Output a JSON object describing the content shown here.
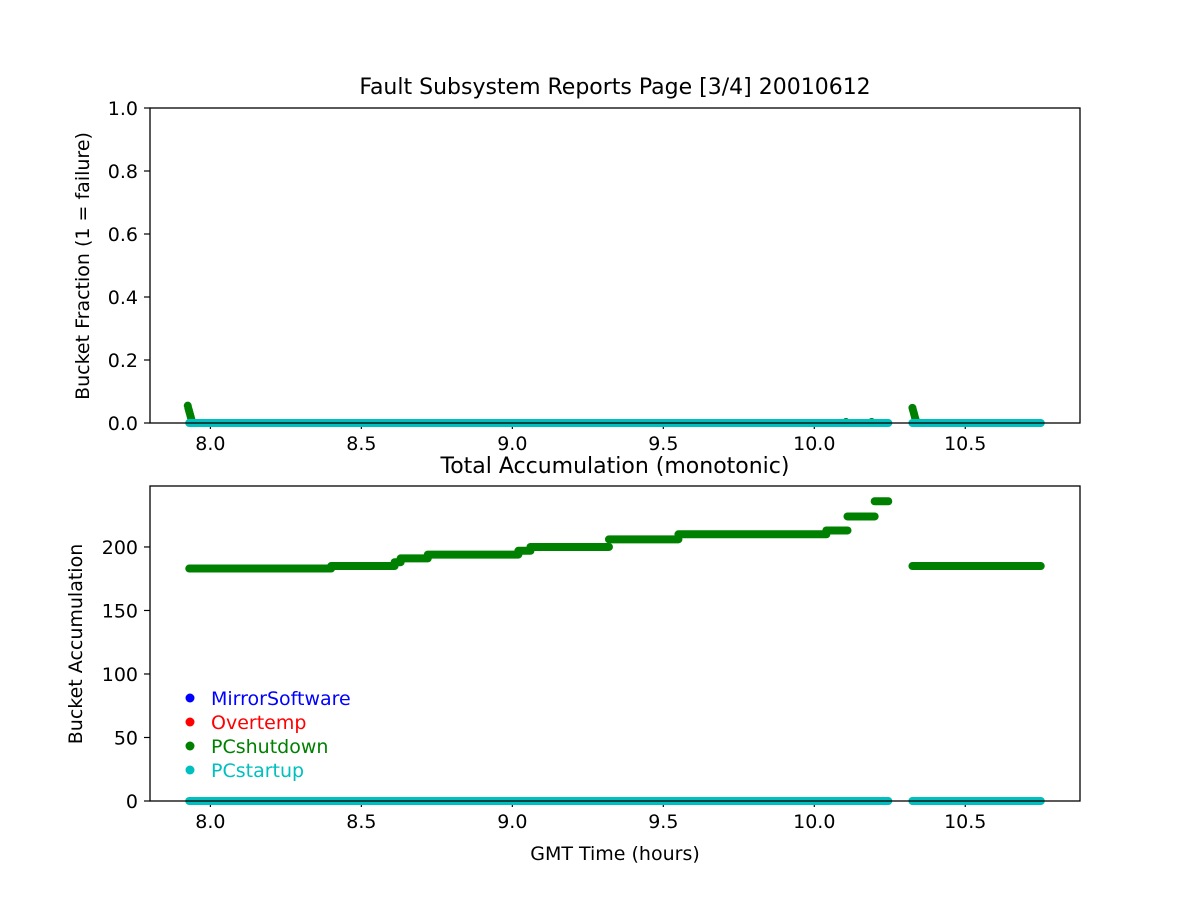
{
  "chart_data": [
    {
      "type": "scatter",
      "title": "Fault Subsystem Reports Page [3/4] 20010612",
      "xlabel": "",
      "ylabel": "Bucket Fraction (1 = failure)",
      "xlim": [
        7.8,
        10.88
      ],
      "ylim": [
        0,
        1.0
      ],
      "xticks": [
        8.0,
        8.5,
        9.0,
        9.5,
        10.0,
        10.5
      ],
      "xtick_labels": [
        "8.0",
        "8.5",
        "9.0",
        "9.5",
        "10.0",
        "10.5"
      ],
      "yticks": [
        0.0,
        0.2,
        0.4,
        0.6,
        0.8,
        1.0
      ],
      "ytick_labels": [
        "0.0",
        "0.2",
        "0.4",
        "0.6",
        "0.8",
        "1.0"
      ],
      "grid": false,
      "series": [
        {
          "name": "PCshutdown",
          "color": "#008000",
          "points": [
            [
              7.925,
              0.055
            ],
            [
              7.927,
              0.047
            ],
            [
              7.929,
              0.04
            ],
            [
              7.931,
              0.033
            ],
            [
              7.933,
              0.026
            ],
            [
              7.935,
              0.019
            ],
            [
              7.937,
              0.012
            ],
            [
              7.939,
              0.006
            ],
            [
              7.941,
              0.002
            ],
            [
              10.105,
              0.003
            ],
            [
              10.19,
              0.003
            ],
            [
              10.325,
              0.048
            ],
            [
              10.327,
              0.041
            ],
            [
              10.329,
              0.034
            ],
            [
              10.331,
              0.027
            ],
            [
              10.333,
              0.02
            ],
            [
              10.335,
              0.013
            ],
            [
              10.337,
              0.007
            ],
            [
              10.339,
              0.002
            ]
          ]
        },
        {
          "name": "PCstartup",
          "color": "#00bfbf",
          "segments": [
            [
              7.93,
              10.245,
              0
            ],
            [
              10.325,
              10.75,
              0
            ]
          ]
        }
      ]
    },
    {
      "type": "scatter",
      "title": "Total Accumulation (monotonic)",
      "xlabel": "GMT Time (hours)",
      "ylabel": "Bucket Accumulation",
      "xlim": [
        7.8,
        10.88
      ],
      "ylim": [
        0,
        248
      ],
      "xticks": [
        8.0,
        8.5,
        9.0,
        9.5,
        10.0,
        10.5
      ],
      "xtick_labels": [
        "8.0",
        "8.5",
        "9.0",
        "9.5",
        "10.0",
        "10.5"
      ],
      "yticks": [
        0,
        50,
        100,
        150,
        200
      ],
      "ytick_labels": [
        "0",
        "50",
        "100",
        "150",
        "200"
      ],
      "grid": false,
      "legend": {
        "placement": "lower-left"
      },
      "series": [
        {
          "name": "MirrorSoftware",
          "color": "#0000ff",
          "segments": []
        },
        {
          "name": "Overtemp",
          "color": "#ff0000",
          "segments": []
        },
        {
          "name": "PCshutdown",
          "color": "#008000",
          "steps": [
            [
              7.93,
              8.4,
              183
            ],
            [
              8.4,
              8.61,
              185
            ],
            [
              8.61,
              8.63,
              188
            ],
            [
              8.63,
              8.72,
              191
            ],
            [
              8.72,
              9.02,
              194
            ],
            [
              9.02,
              9.06,
              197
            ],
            [
              9.06,
              9.32,
              200
            ],
            [
              9.32,
              9.55,
              206
            ],
            [
              9.55,
              10.04,
              210
            ],
            [
              10.04,
              10.11,
              213
            ],
            [
              10.11,
              10.2,
              224
            ],
            [
              10.2,
              10.245,
              236
            ],
            [
              10.325,
              10.75,
              185
            ]
          ]
        },
        {
          "name": "PCstartup",
          "color": "#00bfbf",
          "segments": [
            [
              7.93,
              10.245,
              0
            ],
            [
              10.325,
              10.75,
              0
            ]
          ]
        }
      ]
    }
  ]
}
